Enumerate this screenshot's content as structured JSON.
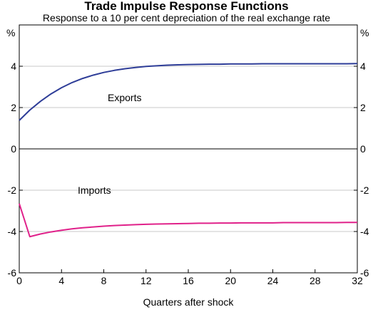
{
  "chart_data": {
    "type": "line",
    "title": "Trade Impulse Response Functions",
    "subtitle": "Response to a 10 per cent depreciation of the real exchange rate",
    "xlabel": "Quarters after shock",
    "ylabel_left": "%",
    "ylabel_right": "%",
    "xlim": [
      0,
      32
    ],
    "ylim": [
      -6,
      6
    ],
    "x_ticks": [
      "0",
      "4",
      "8",
      "12",
      "16",
      "20",
      "24",
      "28",
      "32"
    ],
    "y_ticks": [
      "-6",
      "-4",
      "-2",
      "0",
      "2",
      "4"
    ],
    "grid": true,
    "legend": "labels on plot",
    "x": [
      0,
      1,
      2,
      3,
      4,
      5,
      6,
      7,
      8,
      9,
      10,
      11,
      12,
      13,
      14,
      15,
      16,
      17,
      18,
      19,
      20,
      21,
      22,
      23,
      24,
      25,
      26,
      27,
      28,
      29,
      30,
      31,
      32
    ],
    "series": [
      {
        "name": "Exports",
        "color": "#2e3d98",
        "values": [
          1.38,
          1.88,
          2.3,
          2.66,
          2.96,
          3.21,
          3.41,
          3.57,
          3.7,
          3.8,
          3.88,
          3.94,
          3.99,
          4.02,
          4.05,
          4.07,
          4.08,
          4.09,
          4.1,
          4.1,
          4.11,
          4.11,
          4.11,
          4.12,
          4.12,
          4.12,
          4.12,
          4.12,
          4.12,
          4.12,
          4.12,
          4.12,
          4.13
        ]
      },
      {
        "name": "Imports",
        "color": "#e0218a",
        "values": [
          -2.65,
          -4.25,
          -4.12,
          -4.02,
          -3.94,
          -3.87,
          -3.82,
          -3.78,
          -3.74,
          -3.71,
          -3.69,
          -3.67,
          -3.65,
          -3.64,
          -3.63,
          -3.62,
          -3.61,
          -3.6,
          -3.6,
          -3.59,
          -3.59,
          -3.58,
          -3.58,
          -3.58,
          -3.58,
          -3.57,
          -3.57,
          -3.57,
          -3.57,
          -3.57,
          -3.57,
          -3.56,
          -3.56
        ]
      }
    ]
  }
}
